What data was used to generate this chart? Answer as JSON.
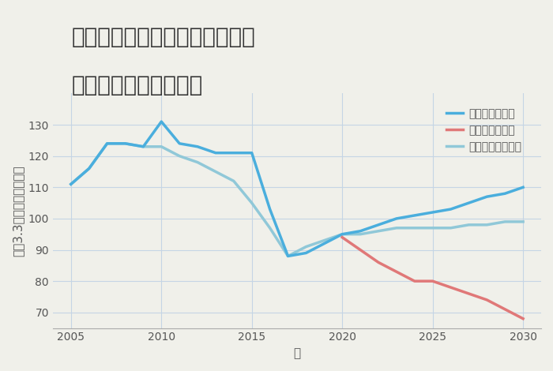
{
  "title_line1": "埼玉県比企郡ときがわ町田中の",
  "title_line2": "中古戸建ての価格推移",
  "xlabel": "年",
  "ylabel": "坪（3.3㎡）単価（万円）",
  "background_color": "#f0f0ea",
  "plot_background": "#f0f0ea",
  "grid_color": "#c5d5e5",
  "good_scenario": {
    "label": "グッドシナリオ",
    "color": "#4aaedd",
    "years": [
      2005,
      2006,
      2007,
      2008,
      2009,
      2010,
      2011,
      2012,
      2013,
      2014,
      2015,
      2016,
      2017,
      2018,
      2019,
      2020,
      2021,
      2022,
      2023,
      2024,
      2025,
      2026,
      2027,
      2028,
      2029,
      2030
    ],
    "values": [
      111,
      116,
      124,
      124,
      123,
      131,
      124,
      123,
      121,
      121,
      121,
      103,
      88,
      89,
      92,
      95,
      96,
      98,
      100,
      101,
      102,
      103,
      105,
      107,
      108,
      110
    ]
  },
  "bad_scenario": {
    "label": "バッドシナリオ",
    "color": "#e07878",
    "years": [
      2020,
      2021,
      2022,
      2023,
      2024,
      2025,
      2026,
      2027,
      2028,
      2029,
      2030
    ],
    "values": [
      94,
      90,
      86,
      83,
      80,
      80,
      78,
      76,
      74,
      71,
      68
    ]
  },
  "normal_scenario": {
    "label": "ノーマルシナリオ",
    "color": "#90c8d8",
    "years": [
      2005,
      2006,
      2007,
      2008,
      2009,
      2010,
      2011,
      2012,
      2013,
      2014,
      2015,
      2016,
      2017,
      2018,
      2019,
      2020,
      2021,
      2022,
      2023,
      2024,
      2025,
      2026,
      2027,
      2028,
      2029,
      2030
    ],
    "values": [
      111,
      116,
      124,
      124,
      123,
      123,
      120,
      118,
      115,
      112,
      105,
      97,
      88,
      91,
      93,
      95,
      95,
      96,
      97,
      97,
      97,
      97,
      98,
      98,
      99,
      99
    ]
  },
  "xlim": [
    2004,
    2031
  ],
  "ylim": [
    65,
    140
  ],
  "yticks": [
    70,
    80,
    90,
    100,
    110,
    120,
    130
  ],
  "xticks": [
    2005,
    2010,
    2015,
    2020,
    2025,
    2030
  ],
  "title_fontsize": 20,
  "axis_label_fontsize": 11,
  "tick_fontsize": 10,
  "legend_fontsize": 10
}
